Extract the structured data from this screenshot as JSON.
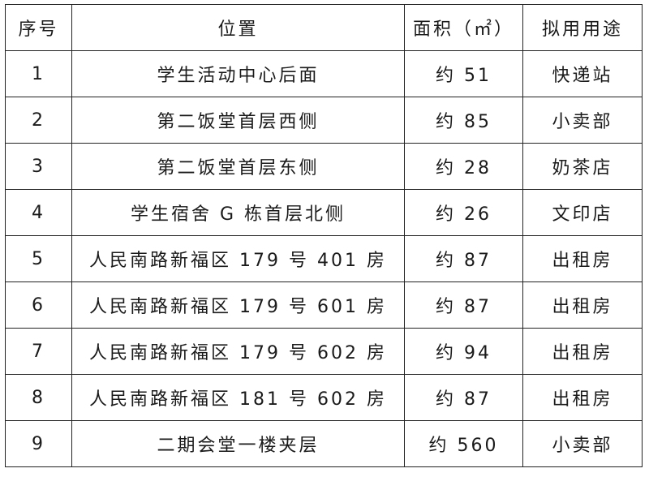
{
  "headers": [
    "序号",
    "位置",
    "面积（㎡）",
    "拟用用途"
  ],
  "rows": [
    [
      "1",
      "学生活动中心后面",
      "约 51",
      "快递站"
    ],
    [
      "2",
      "第二饭堂首层西侧",
      "约 85",
      "小卖部"
    ],
    [
      "3",
      "第二饭堂首层东侧",
      "约 28",
      "奶茶店"
    ],
    [
      "4",
      "学生宿舍 G 栋首层北侧",
      "约 26",
      "文印店"
    ],
    [
      "5",
      "人民南路新福区 179 号 401 房",
      "约 87",
      "出租房"
    ],
    [
      "6",
      "人民南路新福区 179 号 601 房",
      "约 87",
      "出租房"
    ],
    [
      "7",
      "人民南路新福区 179 号 602 房",
      "约 94",
      "出租房"
    ],
    [
      "8",
      "人民南路新福区 181 号 602 房",
      "约 87",
      "出租房"
    ],
    [
      "9",
      "二期会堂一楼夹层",
      "约 560",
      "小卖部"
    ]
  ]
}
